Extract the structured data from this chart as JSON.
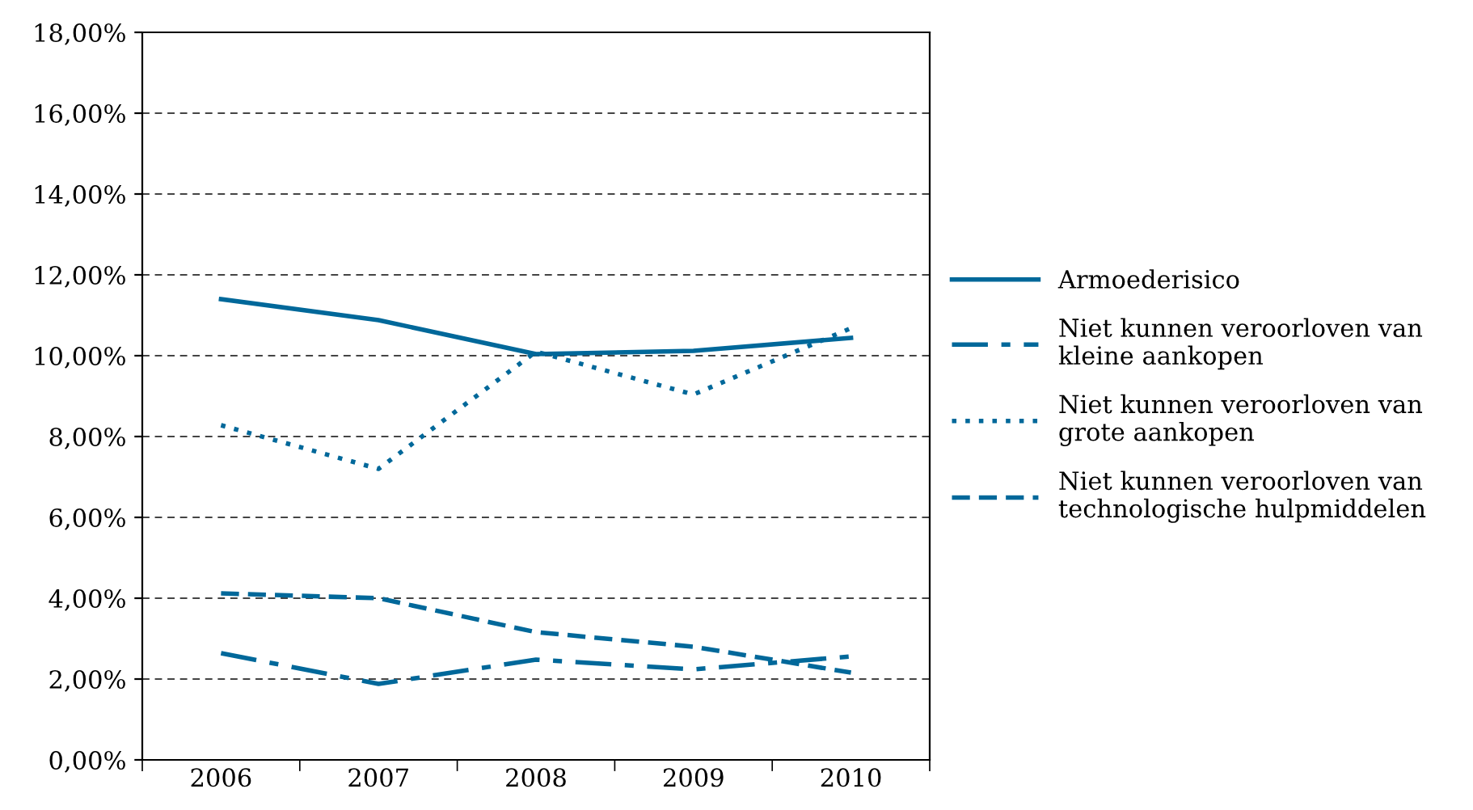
{
  "chart_data": {
    "type": "line",
    "categories": [
      "2006",
      "2007",
      "2008",
      "2009",
      "2010"
    ],
    "series": [
      {
        "name": "Armoederisico",
        "color": "#00689a",
        "line_style": "solid",
        "values": [
          11.4,
          10.88,
          10.04,
          10.12,
          10.44
        ]
      },
      {
        "name": "Niet kunnen veroorloven van\nkleine aankopen",
        "color": "#00689a",
        "line_style": "dashdot",
        "values": [
          2.64,
          1.88,
          2.48,
          2.24,
          2.56
        ]
      },
      {
        "name": "Niet kunnen veroorloven van\ngrote aankopen",
        "color": "#00689a",
        "line_style": "dotted",
        "values": [
          8.28,
          7.2,
          10.1,
          9.04,
          10.68
        ]
      },
      {
        "name": "Niet kunnen veroorloven van\ntechnologische hulpmiddelen",
        "color": "#00689a",
        "line_style": "dashed",
        "values": [
          4.12,
          4.0,
          3.16,
          2.8,
          2.16
        ]
      }
    ],
    "ylim": [
      0,
      18
    ],
    "yticks": [
      {
        "value": 0,
        "label": "0,00%"
      },
      {
        "value": 2,
        "label": "2,00%"
      },
      {
        "value": 4,
        "label": "4,00%"
      },
      {
        "value": 6,
        "label": "6,00%"
      },
      {
        "value": 8,
        "label": "8,00%"
      },
      {
        "value": 10,
        "label": "10,00%"
      },
      {
        "value": 12,
        "label": "12,00%"
      },
      {
        "value": 14,
        "label": "14,00%"
      },
      {
        "value": 16,
        "label": "16,00%"
      },
      {
        "value": 18,
        "label": "18,00%"
      }
    ],
    "grid": "y",
    "legend": "right",
    "marker": "none"
  }
}
